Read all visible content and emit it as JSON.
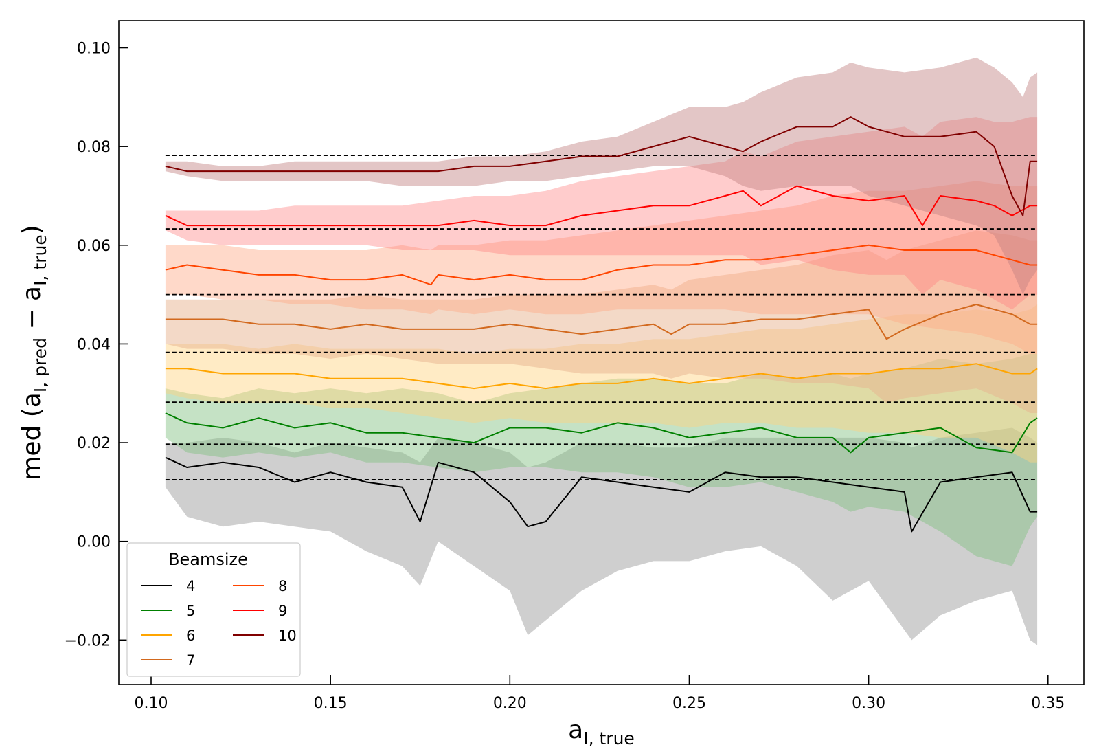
{
  "chart_data": {
    "type": "line",
    "xlabel": {
      "base": "a",
      "sub": "I, true"
    },
    "ylabel": {
      "prefix": "med (",
      "a1": "a",
      "sub1": "I, pred",
      "minus": " − ",
      "a2": "a",
      "sub2": "I, true",
      "suffix": ")"
    },
    "xlim": [
      0.091,
      0.36
    ],
    "ylim": [
      -0.029,
      0.1055
    ],
    "x_ticks": [
      0.1,
      0.15,
      0.2,
      0.25,
      0.3,
      0.35
    ],
    "x_tick_labels": [
      "0.10",
      "0.15",
      "0.20",
      "0.25",
      "0.30",
      "0.35"
    ],
    "y_ticks": [
      -0.02,
      0.0,
      0.02,
      0.04,
      0.06,
      0.08,
      0.1
    ],
    "y_tick_labels": [
      "−0.02",
      "0.00",
      "0.02",
      "0.04",
      "0.06",
      "0.08",
      "0.10"
    ],
    "grid": false,
    "legend": {
      "title": "Beamsize",
      "placement": "lower-left",
      "columns": 2
    },
    "x_range": [
      0.104,
      0.347
    ],
    "reference_lines": {
      "style": "dashed",
      "color": "#000000",
      "x_range": [
        0.104,
        0.347
      ],
      "y_values": [
        0.0125,
        0.0197,
        0.0282,
        0.0383,
        0.05,
        0.0633,
        0.0782
      ]
    },
    "series": [
      {
        "name": "4",
        "color": "#000000",
        "fill": "#bbbbbb",
        "fill_opacity": 0.7,
        "x": [
          0.104,
          0.11,
          0.12,
          0.13,
          0.14,
          0.15,
          0.16,
          0.17,
          0.175,
          0.18,
          0.19,
          0.2,
          0.205,
          0.21,
          0.22,
          0.23,
          0.24,
          0.25,
          0.26,
          0.27,
          0.28,
          0.29,
          0.3,
          0.31,
          0.312,
          0.32,
          0.33,
          0.34,
          0.345,
          0.347
        ],
        "y": [
          0.017,
          0.015,
          0.016,
          0.015,
          0.012,
          0.014,
          0.012,
          0.011,
          0.004,
          0.016,
          0.014,
          0.008,
          0.003,
          0.004,
          0.013,
          0.012,
          0.011,
          0.01,
          0.014,
          0.013,
          0.013,
          0.012,
          0.011,
          0.01,
          0.002,
          0.012,
          0.013,
          0.014,
          0.006,
          0.006
        ],
        "lower": [
          0.011,
          0.005,
          0.003,
          0.004,
          0.003,
          0.002,
          -0.002,
          -0.005,
          -0.009,
          0.0,
          -0.005,
          -0.01,
          -0.019,
          -0.016,
          -0.01,
          -0.006,
          -0.004,
          -0.004,
          -0.002,
          -0.001,
          -0.005,
          -0.012,
          -0.008,
          -0.018,
          -0.02,
          -0.015,
          -0.012,
          -0.01,
          -0.02,
          -0.021
        ],
        "upper": [
          0.02,
          0.02,
          0.021,
          0.02,
          0.018,
          0.02,
          0.019,
          0.018,
          0.016,
          0.021,
          0.02,
          0.018,
          0.015,
          0.016,
          0.02,
          0.02,
          0.019,
          0.019,
          0.021,
          0.021,
          0.021,
          0.021,
          0.021,
          0.02,
          0.019,
          0.021,
          0.022,
          0.023,
          0.021,
          0.02
        ]
      },
      {
        "name": "5",
        "color": "#008000",
        "fill": "#7fbf7f",
        "fill_opacity": 0.45,
        "x": [
          0.104,
          0.11,
          0.12,
          0.13,
          0.14,
          0.15,
          0.16,
          0.17,
          0.18,
          0.19,
          0.2,
          0.21,
          0.22,
          0.23,
          0.24,
          0.25,
          0.26,
          0.27,
          0.28,
          0.29,
          0.295,
          0.3,
          0.31,
          0.32,
          0.33,
          0.34,
          0.345,
          0.347
        ],
        "y": [
          0.026,
          0.024,
          0.023,
          0.025,
          0.023,
          0.024,
          0.022,
          0.022,
          0.021,
          0.02,
          0.023,
          0.023,
          0.022,
          0.024,
          0.023,
          0.021,
          0.022,
          0.023,
          0.021,
          0.021,
          0.018,
          0.021,
          0.022,
          0.023,
          0.019,
          0.018,
          0.024,
          0.025
        ],
        "lower": [
          0.021,
          0.018,
          0.017,
          0.018,
          0.017,
          0.018,
          0.016,
          0.016,
          0.015,
          0.014,
          0.015,
          0.015,
          0.014,
          0.014,
          0.013,
          0.011,
          0.011,
          0.012,
          0.01,
          0.008,
          0.006,
          0.007,
          0.006,
          0.002,
          -0.003,
          -0.005,
          0.003,
          0.005
        ],
        "upper": [
          0.031,
          0.03,
          0.029,
          0.031,
          0.03,
          0.031,
          0.03,
          0.031,
          0.03,
          0.028,
          0.03,
          0.031,
          0.032,
          0.033,
          0.033,
          0.032,
          0.032,
          0.034,
          0.033,
          0.034,
          0.033,
          0.034,
          0.035,
          0.037,
          0.036,
          0.037,
          0.038,
          0.038
        ]
      },
      {
        "name": "6",
        "color": "#ffa500",
        "fill": "#ffd27f",
        "fill_opacity": 0.45,
        "x": [
          0.104,
          0.11,
          0.12,
          0.13,
          0.14,
          0.15,
          0.16,
          0.17,
          0.18,
          0.19,
          0.2,
          0.21,
          0.22,
          0.23,
          0.24,
          0.25,
          0.26,
          0.27,
          0.28,
          0.29,
          0.3,
          0.31,
          0.32,
          0.33,
          0.34,
          0.345,
          0.347
        ],
        "y": [
          0.035,
          0.035,
          0.034,
          0.034,
          0.034,
          0.033,
          0.033,
          0.033,
          0.032,
          0.031,
          0.032,
          0.031,
          0.032,
          0.032,
          0.033,
          0.032,
          0.033,
          0.034,
          0.033,
          0.034,
          0.034,
          0.035,
          0.035,
          0.036,
          0.034,
          0.034,
          0.035
        ],
        "lower": [
          0.03,
          0.029,
          0.028,
          0.028,
          0.028,
          0.027,
          0.027,
          0.026,
          0.025,
          0.024,
          0.025,
          0.024,
          0.024,
          0.024,
          0.024,
          0.023,
          0.024,
          0.024,
          0.023,
          0.023,
          0.022,
          0.022,
          0.021,
          0.021,
          0.018,
          0.016,
          0.016
        ],
        "upper": [
          0.04,
          0.04,
          0.04,
          0.039,
          0.04,
          0.039,
          0.039,
          0.039,
          0.039,
          0.038,
          0.039,
          0.039,
          0.04,
          0.04,
          0.041,
          0.041,
          0.042,
          0.043,
          0.043,
          0.044,
          0.045,
          0.046,
          0.046,
          0.047,
          0.046,
          0.047,
          0.048
        ]
      },
      {
        "name": "7",
        "color": "#d2691e",
        "fill": "#e8b490",
        "fill_opacity": 0.5,
        "x": [
          0.104,
          0.11,
          0.12,
          0.13,
          0.14,
          0.15,
          0.16,
          0.17,
          0.18,
          0.19,
          0.2,
          0.21,
          0.22,
          0.23,
          0.24,
          0.245,
          0.25,
          0.26,
          0.27,
          0.28,
          0.29,
          0.3,
          0.305,
          0.31,
          0.32,
          0.33,
          0.34,
          0.345,
          0.347
        ],
        "y": [
          0.045,
          0.045,
          0.045,
          0.044,
          0.044,
          0.043,
          0.044,
          0.043,
          0.043,
          0.043,
          0.044,
          0.043,
          0.042,
          0.043,
          0.044,
          0.042,
          0.044,
          0.044,
          0.045,
          0.045,
          0.046,
          0.047,
          0.041,
          0.043,
          0.046,
          0.048,
          0.046,
          0.044,
          0.044
        ],
        "lower": [
          0.04,
          0.039,
          0.039,
          0.038,
          0.038,
          0.037,
          0.038,
          0.037,
          0.036,
          0.036,
          0.036,
          0.035,
          0.034,
          0.034,
          0.034,
          0.033,
          0.034,
          0.033,
          0.033,
          0.032,
          0.032,
          0.031,
          0.028,
          0.029,
          0.03,
          0.031,
          0.028,
          0.026,
          0.026
        ],
        "upper": [
          0.049,
          0.049,
          0.049,
          0.049,
          0.049,
          0.049,
          0.05,
          0.049,
          0.049,
          0.049,
          0.05,
          0.05,
          0.05,
          0.051,
          0.052,
          0.051,
          0.053,
          0.054,
          0.055,
          0.056,
          0.058,
          0.059,
          0.057,
          0.059,
          0.061,
          0.063,
          0.062,
          0.061,
          0.061
        ]
      },
      {
        "name": "8",
        "color": "#ff4500",
        "fill": "#ffaa88",
        "fill_opacity": 0.45,
        "x": [
          0.104,
          0.11,
          0.12,
          0.13,
          0.14,
          0.15,
          0.16,
          0.17,
          0.178,
          0.18,
          0.19,
          0.2,
          0.21,
          0.22,
          0.23,
          0.24,
          0.25,
          0.26,
          0.27,
          0.28,
          0.29,
          0.3,
          0.31,
          0.32,
          0.33,
          0.34,
          0.345,
          0.347
        ],
        "y": [
          0.055,
          0.056,
          0.055,
          0.054,
          0.054,
          0.053,
          0.053,
          0.054,
          0.052,
          0.054,
          0.053,
          0.054,
          0.053,
          0.053,
          0.055,
          0.056,
          0.056,
          0.057,
          0.057,
          0.058,
          0.059,
          0.06,
          0.059,
          0.059,
          0.059,
          0.057,
          0.056,
          0.056
        ],
        "lower": [
          0.05,
          0.05,
          0.049,
          0.049,
          0.048,
          0.048,
          0.047,
          0.047,
          0.046,
          0.047,
          0.046,
          0.047,
          0.046,
          0.046,
          0.047,
          0.047,
          0.047,
          0.047,
          0.046,
          0.046,
          0.046,
          0.046,
          0.044,
          0.043,
          0.042,
          0.04,
          0.038,
          0.038
        ],
        "upper": [
          0.06,
          0.06,
          0.06,
          0.059,
          0.059,
          0.059,
          0.059,
          0.06,
          0.059,
          0.06,
          0.06,
          0.061,
          0.061,
          0.062,
          0.063,
          0.064,
          0.065,
          0.066,
          0.067,
          0.068,
          0.07,
          0.071,
          0.071,
          0.072,
          0.073,
          0.072,
          0.072,
          0.072
        ]
      },
      {
        "name": "9",
        "color": "#ff0000",
        "fill": "#ff8080",
        "fill_opacity": 0.4,
        "x": [
          0.104,
          0.11,
          0.12,
          0.13,
          0.14,
          0.15,
          0.16,
          0.17,
          0.18,
          0.19,
          0.2,
          0.21,
          0.22,
          0.23,
          0.24,
          0.25,
          0.26,
          0.265,
          0.27,
          0.28,
          0.29,
          0.3,
          0.31,
          0.315,
          0.32,
          0.33,
          0.335,
          0.34,
          0.345,
          0.347
        ],
        "y": [
          0.066,
          0.064,
          0.064,
          0.064,
          0.064,
          0.064,
          0.064,
          0.064,
          0.064,
          0.065,
          0.064,
          0.064,
          0.066,
          0.067,
          0.068,
          0.068,
          0.07,
          0.071,
          0.068,
          0.072,
          0.07,
          0.069,
          0.07,
          0.064,
          0.07,
          0.069,
          0.068,
          0.066,
          0.068,
          0.068
        ],
        "lower": [
          0.063,
          0.061,
          0.06,
          0.06,
          0.06,
          0.06,
          0.06,
          0.059,
          0.059,
          0.059,
          0.058,
          0.058,
          0.058,
          0.058,
          0.058,
          0.058,
          0.058,
          0.058,
          0.056,
          0.057,
          0.055,
          0.054,
          0.054,
          0.05,
          0.053,
          0.051,
          0.049,
          0.047,
          0.05,
          0.05
        ],
        "upper": [
          0.067,
          0.067,
          0.067,
          0.067,
          0.068,
          0.068,
          0.068,
          0.068,
          0.069,
          0.07,
          0.07,
          0.071,
          0.073,
          0.074,
          0.075,
          0.076,
          0.077,
          0.079,
          0.078,
          0.081,
          0.082,
          0.083,
          0.084,
          0.082,
          0.085,
          0.086,
          0.085,
          0.085,
          0.086,
          0.086
        ]
      },
      {
        "name": "10",
        "color": "#800000",
        "fill": "#c08080",
        "fill_opacity": 0.45,
        "x": [
          0.104,
          0.11,
          0.12,
          0.13,
          0.14,
          0.15,
          0.16,
          0.17,
          0.18,
          0.19,
          0.2,
          0.21,
          0.22,
          0.23,
          0.24,
          0.25,
          0.26,
          0.265,
          0.27,
          0.28,
          0.29,
          0.295,
          0.3,
          0.31,
          0.32,
          0.33,
          0.335,
          0.34,
          0.343,
          0.345,
          0.347
        ],
        "y": [
          0.076,
          0.075,
          0.075,
          0.075,
          0.075,
          0.075,
          0.075,
          0.075,
          0.075,
          0.076,
          0.076,
          0.077,
          0.078,
          0.078,
          0.08,
          0.082,
          0.08,
          0.079,
          0.081,
          0.084,
          0.084,
          0.086,
          0.084,
          0.082,
          0.082,
          0.083,
          0.08,
          0.07,
          0.066,
          0.077,
          0.077
        ],
        "lower": [
          0.075,
          0.074,
          0.073,
          0.073,
          0.073,
          0.073,
          0.073,
          0.072,
          0.072,
          0.072,
          0.073,
          0.073,
          0.074,
          0.075,
          0.076,
          0.076,
          0.074,
          0.072,
          0.071,
          0.072,
          0.072,
          0.072,
          0.07,
          0.068,
          0.066,
          0.064,
          0.062,
          0.055,
          0.05,
          0.053,
          0.055
        ],
        "upper": [
          0.077,
          0.077,
          0.076,
          0.076,
          0.077,
          0.077,
          0.077,
          0.077,
          0.077,
          0.078,
          0.078,
          0.079,
          0.081,
          0.082,
          0.085,
          0.088,
          0.088,
          0.089,
          0.091,
          0.094,
          0.095,
          0.097,
          0.096,
          0.095,
          0.096,
          0.098,
          0.096,
          0.093,
          0.09,
          0.094,
          0.095
        ]
      }
    ]
  }
}
